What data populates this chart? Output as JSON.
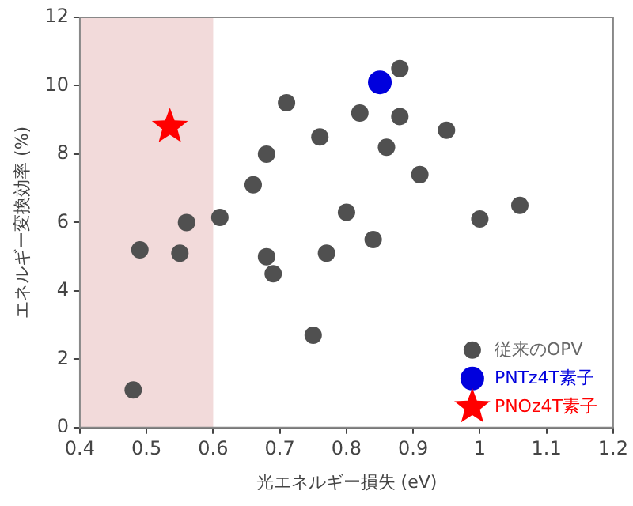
{
  "chart_data": {
    "type": "scatter",
    "xlabel": "光エネルギー損失 (eV)",
    "ylabel": "エネルギー変換効率 (%)",
    "xlim": [
      0.4,
      1.2
    ],
    "xticks": [
      0.4,
      0.5,
      0.6,
      0.7,
      0.8,
      0.9,
      1,
      1.1,
      1.2
    ],
    "ylim": [
      0,
      12
    ],
    "yticks": [
      0,
      2,
      4,
      6,
      8,
      10,
      12
    ],
    "legend": "bottom right",
    "bands": [
      {
        "axis": "x",
        "from": 0.4,
        "to": 0.6,
        "color": "#f2dada"
      }
    ],
    "series": [
      {
        "name": "従来のOPV",
        "color": "#505050",
        "marker": "circle",
        "x": [
          0.48,
          0.49,
          0.55,
          0.56,
          0.61,
          0.66,
          0.68,
          0.68,
          0.69,
          0.71,
          0.75,
          0.76,
          0.77,
          0.8,
          0.82,
          0.84,
          0.86,
          0.88,
          0.88,
          0.91,
          0.95,
          1.0,
          1.06
        ],
        "values": [
          1.1,
          5.2,
          5.1,
          6.0,
          6.15,
          7.1,
          8.0,
          5.0,
          4.5,
          9.5,
          2.7,
          8.5,
          5.1,
          6.3,
          9.2,
          5.5,
          8.2,
          10.5,
          9.1,
          7.4,
          8.7,
          6.1,
          6.5
        ]
      },
      {
        "name": "PNTz4T素子",
        "color": "#0000dd",
        "marker": "circle",
        "x": [
          0.85
        ],
        "values": [
          10.1
        ]
      },
      {
        "name": "PNOz4T素子",
        "color": "#ff0000",
        "marker": "star",
        "x": [
          0.535
        ],
        "values": [
          8.8
        ]
      }
    ]
  }
}
